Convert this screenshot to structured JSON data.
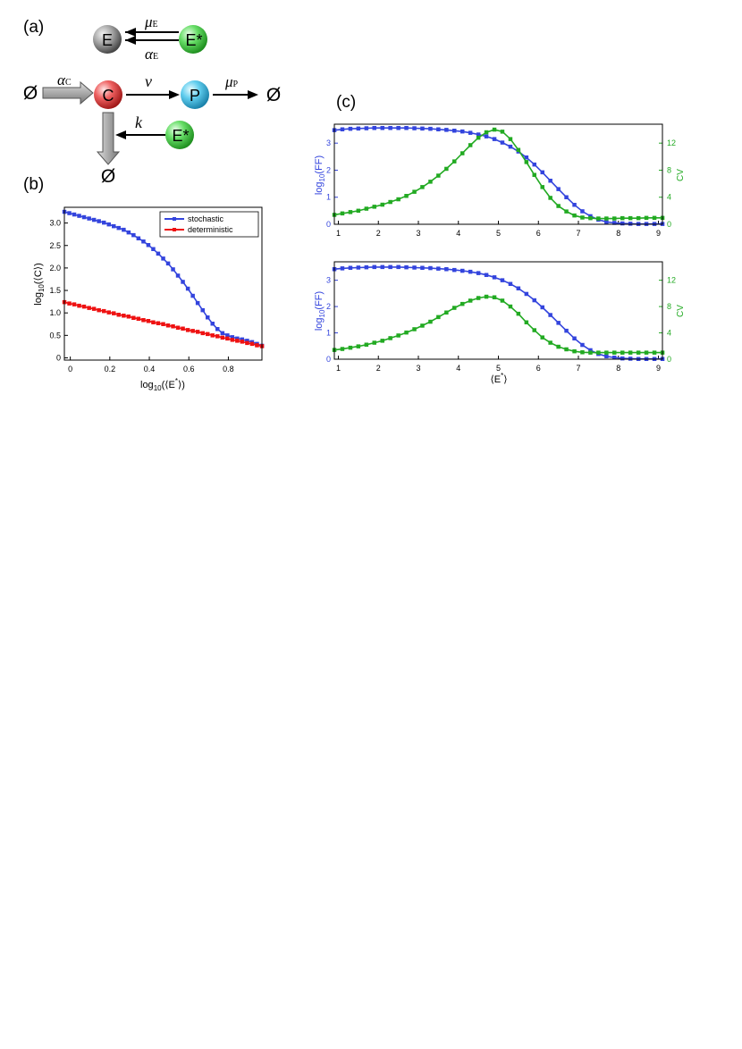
{
  "panels": {
    "a": "(a)",
    "b": "(b)",
    "c": "(c)"
  },
  "scheme": {
    "species": {
      "E": "E",
      "Estar": "E*",
      "C": "C",
      "P": "P",
      "null": "Ø"
    },
    "rates": {
      "muE": {
        "sym": "μ",
        "sub": "E"
      },
      "alphaE": {
        "sym": "α",
        "sub": "E"
      },
      "alphaC": {
        "sym": "α",
        "sub": "C"
      },
      "nu": {
        "sym": "v",
        "sub": ""
      },
      "muP": {
        "sym": "μ",
        "sub": "P"
      },
      "k": {
        "sym": "k",
        "sub": ""
      }
    },
    "colors": {
      "E": "#888888",
      "Estar": "#55dd55",
      "C": "#ee5555",
      "P": "#55ccee"
    }
  },
  "colors": {
    "blue": "#3344dd",
    "red": "#ee1111",
    "green": "#22aa22"
  },
  "chart_data": [
    {
      "id": "b",
      "type": "line",
      "title": "",
      "xlabel": {
        "pre": "log",
        "sub": "10",
        "post": "(⟨E",
        "sup": "*",
        "end": "⟩)"
      },
      "ylabel": {
        "pre": "log",
        "sub": "10",
        "post": "(⟨C⟩)"
      },
      "xlim": [
        -0.03,
        0.97
      ],
      "ylim": [
        -0.05,
        3.35
      ],
      "xticks": [
        0,
        0.2,
        0.4,
        0.6,
        0.8
      ],
      "xtick_labels": [
        "0",
        "0.2",
        "0.4",
        "0.6",
        "0.8"
      ],
      "yticks": [
        0,
        0.5,
        1.0,
        1.5,
        2.0,
        2.5,
        3.0
      ],
      "ytick_labels": [
        "0",
        "0.5",
        "1.0",
        "1.5",
        "2.0",
        "2.5",
        "3.0"
      ],
      "legend_position": "top-right",
      "x": [
        -0.03,
        -0.005,
        0.02,
        0.045,
        0.07,
        0.095,
        0.12,
        0.145,
        0.17,
        0.195,
        0.22,
        0.245,
        0.27,
        0.295,
        0.32,
        0.345,
        0.37,
        0.395,
        0.42,
        0.445,
        0.47,
        0.495,
        0.52,
        0.545,
        0.57,
        0.595,
        0.62,
        0.645,
        0.67,
        0.695,
        0.72,
        0.745,
        0.77,
        0.795,
        0.82,
        0.845,
        0.87,
        0.895,
        0.92,
        0.945,
        0.97
      ],
      "series": [
        {
          "name": "stochastic",
          "color": "#3344dd",
          "values": [
            3.25,
            3.22,
            3.19,
            3.16,
            3.13,
            3.1,
            3.07,
            3.04,
            3.01,
            2.97,
            2.93,
            2.89,
            2.85,
            2.79,
            2.73,
            2.66,
            2.59,
            2.51,
            2.42,
            2.32,
            2.21,
            2.1,
            1.97,
            1.83,
            1.69,
            1.54,
            1.38,
            1.22,
            1.06,
            0.9,
            0.76,
            0.64,
            0.55,
            0.5,
            0.46,
            0.43,
            0.41,
            0.38,
            0.35,
            0.31,
            0.27
          ]
        },
        {
          "name": "deterministic",
          "color": "#ee1111",
          "values": [
            1.24,
            1.21,
            1.19,
            1.16,
            1.14,
            1.11,
            1.09,
            1.06,
            1.04,
            1.01,
            0.99,
            0.96,
            0.94,
            0.92,
            0.89,
            0.87,
            0.84,
            0.82,
            0.79,
            0.77,
            0.75,
            0.72,
            0.7,
            0.67,
            0.65,
            0.62,
            0.6,
            0.58,
            0.55,
            0.53,
            0.5,
            0.48,
            0.45,
            0.43,
            0.4,
            0.38,
            0.36,
            0.33,
            0.31,
            0.28,
            0.26
          ]
        }
      ]
    },
    {
      "id": "c-top",
      "type": "line",
      "title": "",
      "xlabel": "",
      "ylabel_left": {
        "pre": "log",
        "sub": "10",
        "post": "(FF)"
      },
      "ylabel_right": "CV",
      "xlim": [
        0.9,
        9.1
      ],
      "ylim_left": [
        0,
        3.7
      ],
      "ylim_right": [
        0,
        14.8
      ],
      "xticks": [
        1,
        2,
        3,
        4,
        5,
        6,
        7,
        8,
        9
      ],
      "xtick_labels": [
        "1",
        "2",
        "3",
        "4",
        "5",
        "6",
        "7",
        "8",
        "9"
      ],
      "yticks_left": [
        0,
        1,
        2,
        3
      ],
      "ytick_labels_left": [
        "0",
        "1",
        "2",
        "3"
      ],
      "yticks_right": [
        0,
        4,
        8,
        12
      ],
      "ytick_labels_right": [
        "0",
        "4",
        "8",
        "12"
      ],
      "x": [
        0.9,
        1.1,
        1.3,
        1.5,
        1.7,
        1.9,
        2.1,
        2.3,
        2.5,
        2.7,
        2.9,
        3.1,
        3.3,
        3.5,
        3.7,
        3.9,
        4.1,
        4.3,
        4.5,
        4.7,
        4.9,
        5.1,
        5.3,
        5.5,
        5.7,
        5.9,
        6.1,
        6.3,
        6.5,
        6.7,
        6.9,
        7.1,
        7.3,
        7.5,
        7.7,
        7.9,
        8.1,
        8.3,
        8.5,
        8.7,
        8.9,
        9.1
      ],
      "series": [
        {
          "name": "log10(FF)",
          "axis": "left",
          "color": "#3344dd",
          "values": [
            3.48,
            3.51,
            3.53,
            3.54,
            3.55,
            3.56,
            3.56,
            3.56,
            3.56,
            3.56,
            3.55,
            3.54,
            3.53,
            3.51,
            3.49,
            3.46,
            3.43,
            3.38,
            3.32,
            3.25,
            3.15,
            3.02,
            2.87,
            2.69,
            2.47,
            2.21,
            1.92,
            1.61,
            1.3,
            1.0,
            0.72,
            0.48,
            0.3,
            0.17,
            0.09,
            0.05,
            0.03,
            0.02,
            0.01,
            0.01,
            0.01,
            0.01
          ]
        },
        {
          "name": "CV",
          "axis": "right",
          "color": "#22aa22",
          "values": [
            1.4,
            1.6,
            1.8,
            2.0,
            2.3,
            2.6,
            2.9,
            3.3,
            3.7,
            4.2,
            4.8,
            5.5,
            6.3,
            7.2,
            8.2,
            9.3,
            10.5,
            11.7,
            12.8,
            13.6,
            14.0,
            13.7,
            12.6,
            11.0,
            9.2,
            7.3,
            5.5,
            3.9,
            2.7,
            1.9,
            1.3,
            1.0,
            0.9,
            0.85,
            0.85,
            0.85,
            0.9,
            0.9,
            0.9,
            0.95,
            0.95,
            0.95
          ]
        }
      ]
    },
    {
      "id": "c-bottom",
      "type": "line",
      "title": "",
      "xlabel": {
        "pre": "⟨E",
        "sup": "*",
        "end": "⟩"
      },
      "ylabel_left": {
        "pre": "log",
        "sub": "10",
        "post": "(FF)"
      },
      "ylabel_right": "CV",
      "xlim": [
        0.9,
        9.1
      ],
      "ylim_left": [
        0,
        3.7
      ],
      "ylim_right": [
        0,
        14.8
      ],
      "xticks": [
        1,
        2,
        3,
        4,
        5,
        6,
        7,
        8,
        9
      ],
      "xtick_labels": [
        "1",
        "2",
        "3",
        "4",
        "5",
        "6",
        "7",
        "8",
        "9"
      ],
      "yticks_left": [
        0,
        1,
        2,
        3
      ],
      "ytick_labels_left": [
        "0",
        "1",
        "2",
        "3"
      ],
      "yticks_right": [
        0,
        4,
        8,
        12
      ],
      "ytick_labels_right": [
        "0",
        "4",
        "8",
        "12"
      ],
      "x": [
        0.9,
        1.1,
        1.3,
        1.5,
        1.7,
        1.9,
        2.1,
        2.3,
        2.5,
        2.7,
        2.9,
        3.1,
        3.3,
        3.5,
        3.7,
        3.9,
        4.1,
        4.3,
        4.5,
        4.7,
        4.9,
        5.1,
        5.3,
        5.5,
        5.7,
        5.9,
        6.1,
        6.3,
        6.5,
        6.7,
        6.9,
        7.1,
        7.3,
        7.5,
        7.7,
        7.9,
        8.1,
        8.3,
        8.5,
        8.7,
        8.9,
        9.1
      ],
      "series": [
        {
          "name": "log10(FF)",
          "axis": "left",
          "color": "#3344dd",
          "values": [
            3.42,
            3.45,
            3.47,
            3.48,
            3.49,
            3.5,
            3.5,
            3.5,
            3.5,
            3.49,
            3.48,
            3.47,
            3.46,
            3.44,
            3.42,
            3.39,
            3.36,
            3.32,
            3.27,
            3.2,
            3.11,
            3.0,
            2.86,
            2.69,
            2.48,
            2.24,
            1.97,
            1.68,
            1.38,
            1.08,
            0.79,
            0.54,
            0.34,
            0.2,
            0.11,
            0.06,
            0.03,
            0.02,
            0.01,
            0.01,
            0.01,
            0.01
          ]
        },
        {
          "name": "CV",
          "axis": "right",
          "color": "#22aa22",
          "values": [
            1.4,
            1.55,
            1.75,
            1.95,
            2.2,
            2.5,
            2.8,
            3.2,
            3.6,
            4.05,
            4.55,
            5.1,
            5.7,
            6.4,
            7.1,
            7.8,
            8.4,
            8.9,
            9.3,
            9.5,
            9.4,
            8.9,
            8.0,
            6.9,
            5.6,
            4.4,
            3.3,
            2.5,
            1.9,
            1.5,
            1.2,
            1.05,
            1.0,
            1.0,
            1.0,
            1.0,
            1.0,
            1.0,
            1.0,
            1.0,
            1.0,
            1.0
          ]
        }
      ]
    }
  ]
}
